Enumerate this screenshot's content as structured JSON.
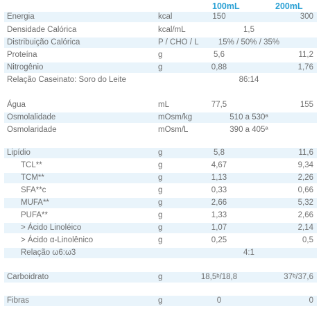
{
  "header": {
    "col1": "100mL",
    "col2": "200mL"
  },
  "rows": [
    {
      "label": "Energia",
      "unit": "kcal",
      "v1": "150",
      "v2": "300"
    },
    {
      "label": "Densidade Calórica",
      "unit": "kcal/mL",
      "span": "1,5"
    },
    {
      "label": "Distribuição Calórica",
      "unit": "P / CHO / L",
      "span": "15% / 50% / 35%"
    },
    {
      "label": "Proteína",
      "unit": "g",
      "v1": "5,6",
      "v2": "11,2"
    },
    {
      "label": "Nitrogênio",
      "unit": "g",
      "v1": "0,88",
      "v2": "1,76"
    },
    {
      "label": "Relação Caseinato: Soro do Leite",
      "span": "86:14"
    },
    {
      "label": "Água",
      "unit": "mL",
      "v1": "77,5",
      "v2": "155"
    },
    {
      "label": "Osmolalidade",
      "unit": "mOsm/kg",
      "span": "510 a 530ª"
    },
    {
      "label": "Osmolaridade",
      "unit": "mOsm/L",
      "span": "390 a 405ª"
    },
    {
      "label": "Lipídio",
      "unit": "g",
      "v1": "5,8",
      "v2": "11,6"
    },
    {
      "label": "TCL**",
      "unit": "g",
      "v1": "4,67",
      "v2": "9,34"
    },
    {
      "label": "TCM**",
      "unit": "g",
      "v1": "1,13",
      "v2": "2,26"
    },
    {
      "label": "SFA**c",
      "unit": "g",
      "v1": "0,33",
      "v2": "0,66"
    },
    {
      "label": "MUFA**",
      "unit": "g",
      "v1": "2,66",
      "v2": "5,32"
    },
    {
      "label": "PUFA**",
      "unit": "g",
      "v1": "1,33",
      "v2": "2,66"
    },
    {
      "label": "> Ácido Linoléico",
      "unit": "g",
      "v1": "1,07",
      "v2": "2,14"
    },
    {
      "label": "> Ácido α-Linolênico",
      "unit": "g",
      "v1": "0,25",
      "v2": "0,5"
    },
    {
      "label": "Relação ω6:ω3",
      "span": "4:1"
    },
    {
      "label": "Carboidrato",
      "unit": "g",
      "v1": "18,5ᵇ/18,8",
      "v2": "37ᵇ/37,6"
    },
    {
      "label": "Fibras",
      "unit": "g",
      "v1": "0",
      "v2": "0"
    }
  ]
}
